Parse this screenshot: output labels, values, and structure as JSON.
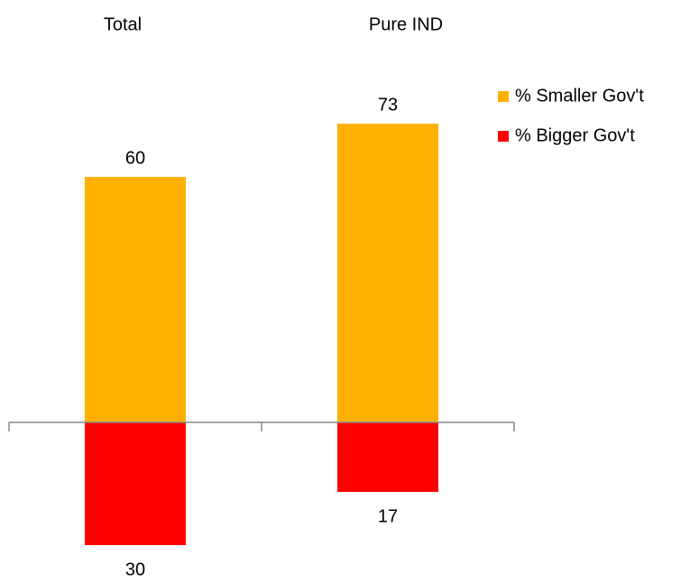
{
  "chart_data": {
    "type": "bar",
    "categories": [
      "Total",
      "Pure IND"
    ],
    "series": [
      {
        "name": "% Smaller Gov't",
        "color": "#FFB000",
        "values": [
          60,
          73
        ]
      },
      {
        "name": "% Bigger Gov't",
        "color": "#FF0000",
        "values": [
          30,
          17
        ]
      }
    ]
  }
}
